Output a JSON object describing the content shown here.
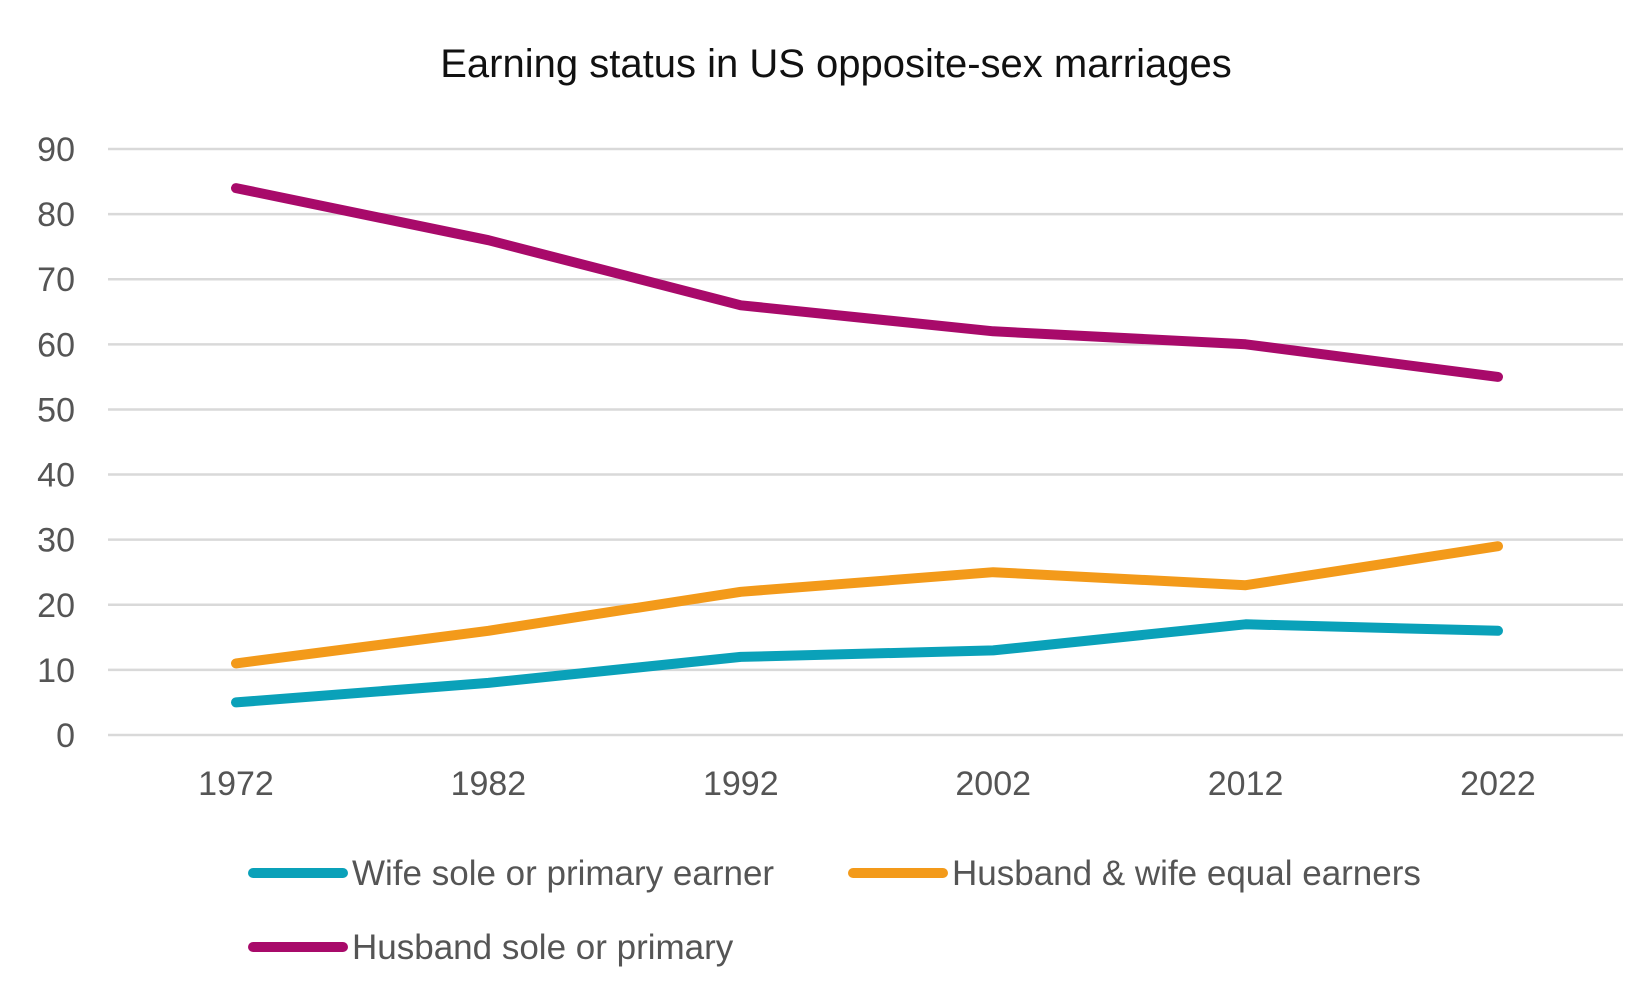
{
  "chart_data": {
    "type": "line",
    "title": "Earning status in US opposite-sex marriages",
    "xlabel": "",
    "ylabel": "",
    "categories": [
      "1972",
      "1982",
      "1992",
      "2002",
      "2012",
      "2022"
    ],
    "ylim": [
      0,
      90
    ],
    "yticks": [
      "0",
      "10",
      "20",
      "30",
      "40",
      "50",
      "60",
      "70",
      "80",
      "90"
    ],
    "grid": true,
    "legend_position": "bottom",
    "series": [
      {
        "name": "Wife sole or primary earner",
        "color": "#0aa1b9",
        "values": [
          5,
          8,
          12,
          13,
          17,
          16
        ]
      },
      {
        "name": "Husband & wife equal earners",
        "color": "#f39a1a",
        "values": [
          11,
          16,
          22,
          25,
          23,
          29
        ]
      },
      {
        "name": "Husband sole or primary",
        "color": "#a80a6a",
        "values": [
          84,
          76,
          66,
          62,
          60,
          55
        ]
      }
    ]
  }
}
